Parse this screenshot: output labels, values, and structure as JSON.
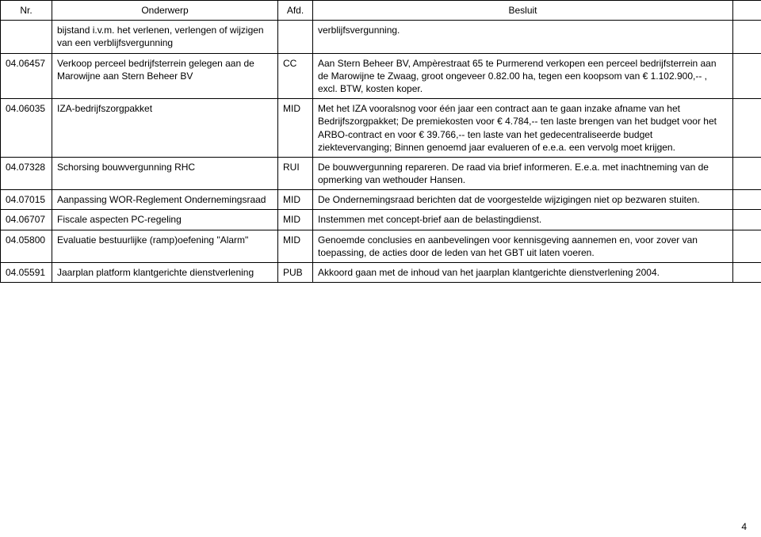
{
  "headers": {
    "nr": "Nr.",
    "onderwerp": "Onderwerp",
    "afd": "Afd.",
    "besluit": "Besluit"
  },
  "rows": [
    {
      "nr": "",
      "onderwerp": "bijstand i.v.m. het verlenen, verlengen of wijzigen van een verblijfsvergunning",
      "afd": "",
      "besluit": "verblijfsvergunning."
    },
    {
      "nr": "04.06457",
      "onderwerp": "Verkoop perceel bedrijfsterrein gelegen aan de Marowijne aan Stern Beheer BV",
      "afd": "CC",
      "besluit": "Aan Stern Beheer BV, Ampèrestraat 65 te Purmerend verkopen een perceel bedrijfsterrein aan de Marowijne te Zwaag, groot ongeveer 0.82.00 ha, tegen een koopsom van € 1.102.900,-- , excl. BTW, kosten koper."
    },
    {
      "nr": "04.06035",
      "onderwerp": "IZA-bedrijfszorgpakket",
      "afd": "MID",
      "besluit": "Met het IZA vooralsnog voor één jaar een contract aan te gaan inzake afname van het Bedrijfszorgpakket; De premiekosten voor € 4.784,-- ten laste brengen van het budget voor het ARBO-contract en voor € 39.766,-- ten laste van het gedecentraliseerde budget ziektevervanging; Binnen genoemd jaar evalueren of e.e.a. een vervolg moet krijgen."
    },
    {
      "nr": "04.07328",
      "onderwerp": "Schorsing bouwvergunning RHC",
      "afd": "RUI",
      "besluit": "De bouwvergunning repareren. De raad via brief informeren. E.e.a. met inachtneming van de opmerking van wethouder Hansen."
    },
    {
      "nr": "04.07015",
      "onderwerp": "Aanpassing WOR-Reglement Ondernemingsraad",
      "afd": "MID",
      "besluit": "De Ondernemingsraad berichten dat de voorgestelde wijzigingen niet op bezwaren stuiten."
    },
    {
      "nr": "04.06707",
      "onderwerp": "Fiscale aspecten PC-regeling",
      "afd": "MID",
      "besluit": "Instemmen met concept-brief aan de belastingdienst."
    },
    {
      "nr": "04.05800",
      "onderwerp": "Evaluatie bestuurlijke (ramp)oefening \"Alarm\"",
      "afd": "MID",
      "besluit": "Genoemde conclusies en aanbevelingen voor kennisgeving aannemen en, voor zover van toepassing, de acties door de leden van het GBT uit laten voeren."
    },
    {
      "nr": "04.05591",
      "onderwerp": "Jaarplan platform klantgerichte dienstverlening",
      "afd": "PUB",
      "besluit": "Akkoord gaan met de inhoud van het jaarplan klantgerichte dienstverlening 2004."
    }
  ],
  "page_number": "4"
}
